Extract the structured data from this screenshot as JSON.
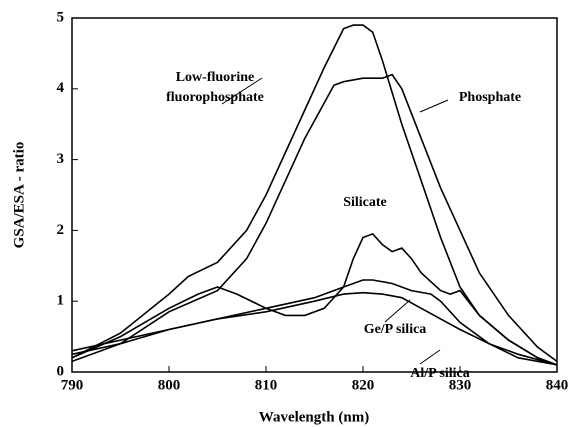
{
  "chart_data": {
    "type": "line",
    "xlabel": "Wavelength (nm)",
    "ylabel": "GSA/ESA - ratio",
    "xlim": [
      790,
      840
    ],
    "xticks": [
      790,
      800,
      810,
      820,
      830,
      840
    ],
    "ylim": [
      0,
      5
    ],
    "yticks": [
      0,
      1,
      2,
      3,
      4,
      5
    ],
    "series": [
      {
        "name": "Low-fluorine fluorophosphate",
        "color": "#000000",
        "x": [
          790,
          795,
          800,
          802,
          805,
          808,
          810,
          812,
          814,
          816,
          818,
          819,
          820,
          821,
          822,
          824,
          826,
          828,
          830,
          832,
          835,
          838,
          840
        ],
        "values": [
          0.2,
          0.55,
          1.1,
          1.35,
          1.55,
          2.0,
          2.5,
          3.1,
          3.7,
          4.3,
          4.85,
          4.9,
          4.9,
          4.8,
          4.4,
          3.5,
          2.7,
          1.9,
          1.2,
          0.8,
          0.45,
          0.2,
          0.1
        ]
      },
      {
        "name": "Phosphate",
        "color": "#000000",
        "x": [
          790,
          795,
          800,
          805,
          808,
          810,
          812,
          814,
          816,
          817,
          818,
          820,
          822,
          823,
          824,
          826,
          828,
          830,
          832,
          835,
          838,
          840
        ],
        "values": [
          0.15,
          0.4,
          0.85,
          1.15,
          1.6,
          2.1,
          2.7,
          3.3,
          3.8,
          4.05,
          4.1,
          4.15,
          4.15,
          4.2,
          4.0,
          3.3,
          2.6,
          2.0,
          1.4,
          0.8,
          0.35,
          0.15
        ]
      },
      {
        "name": "Silicate",
        "color": "#000000",
        "x": [
          790,
          795,
          800,
          803,
          805,
          807,
          810,
          812,
          814,
          816,
          818,
          819,
          820,
          821,
          822,
          823,
          824,
          825,
          826,
          828,
          829,
          830,
          832,
          835,
          838,
          840
        ],
        "values": [
          0.2,
          0.5,
          0.9,
          1.1,
          1.2,
          1.1,
          0.9,
          0.8,
          0.8,
          0.9,
          1.2,
          1.6,
          1.9,
          1.95,
          1.8,
          1.7,
          1.75,
          1.6,
          1.4,
          1.15,
          1.1,
          1.15,
          0.8,
          0.45,
          0.2,
          0.1
        ]
      },
      {
        "name": "Ge/P silica",
        "color": "#000000",
        "x": [
          790,
          795,
          800,
          805,
          810,
          815,
          818,
          820,
          821,
          823,
          825,
          827,
          828,
          830,
          833,
          836,
          840
        ],
        "values": [
          0.3,
          0.45,
          0.6,
          0.75,
          0.9,
          1.05,
          1.2,
          1.3,
          1.3,
          1.25,
          1.15,
          1.1,
          1.0,
          0.7,
          0.4,
          0.2,
          0.1
        ]
      },
      {
        "name": "Al/P silica",
        "color": "#000000",
        "x": [
          790,
          795,
          800,
          805,
          810,
          815,
          818,
          820,
          822,
          824,
          826,
          828,
          830,
          833,
          836,
          840
        ],
        "values": [
          0.25,
          0.4,
          0.6,
          0.75,
          0.85,
          1.0,
          1.1,
          1.12,
          1.1,
          1.05,
          0.9,
          0.75,
          0.6,
          0.4,
          0.25,
          0.1
        ]
      }
    ]
  }
}
